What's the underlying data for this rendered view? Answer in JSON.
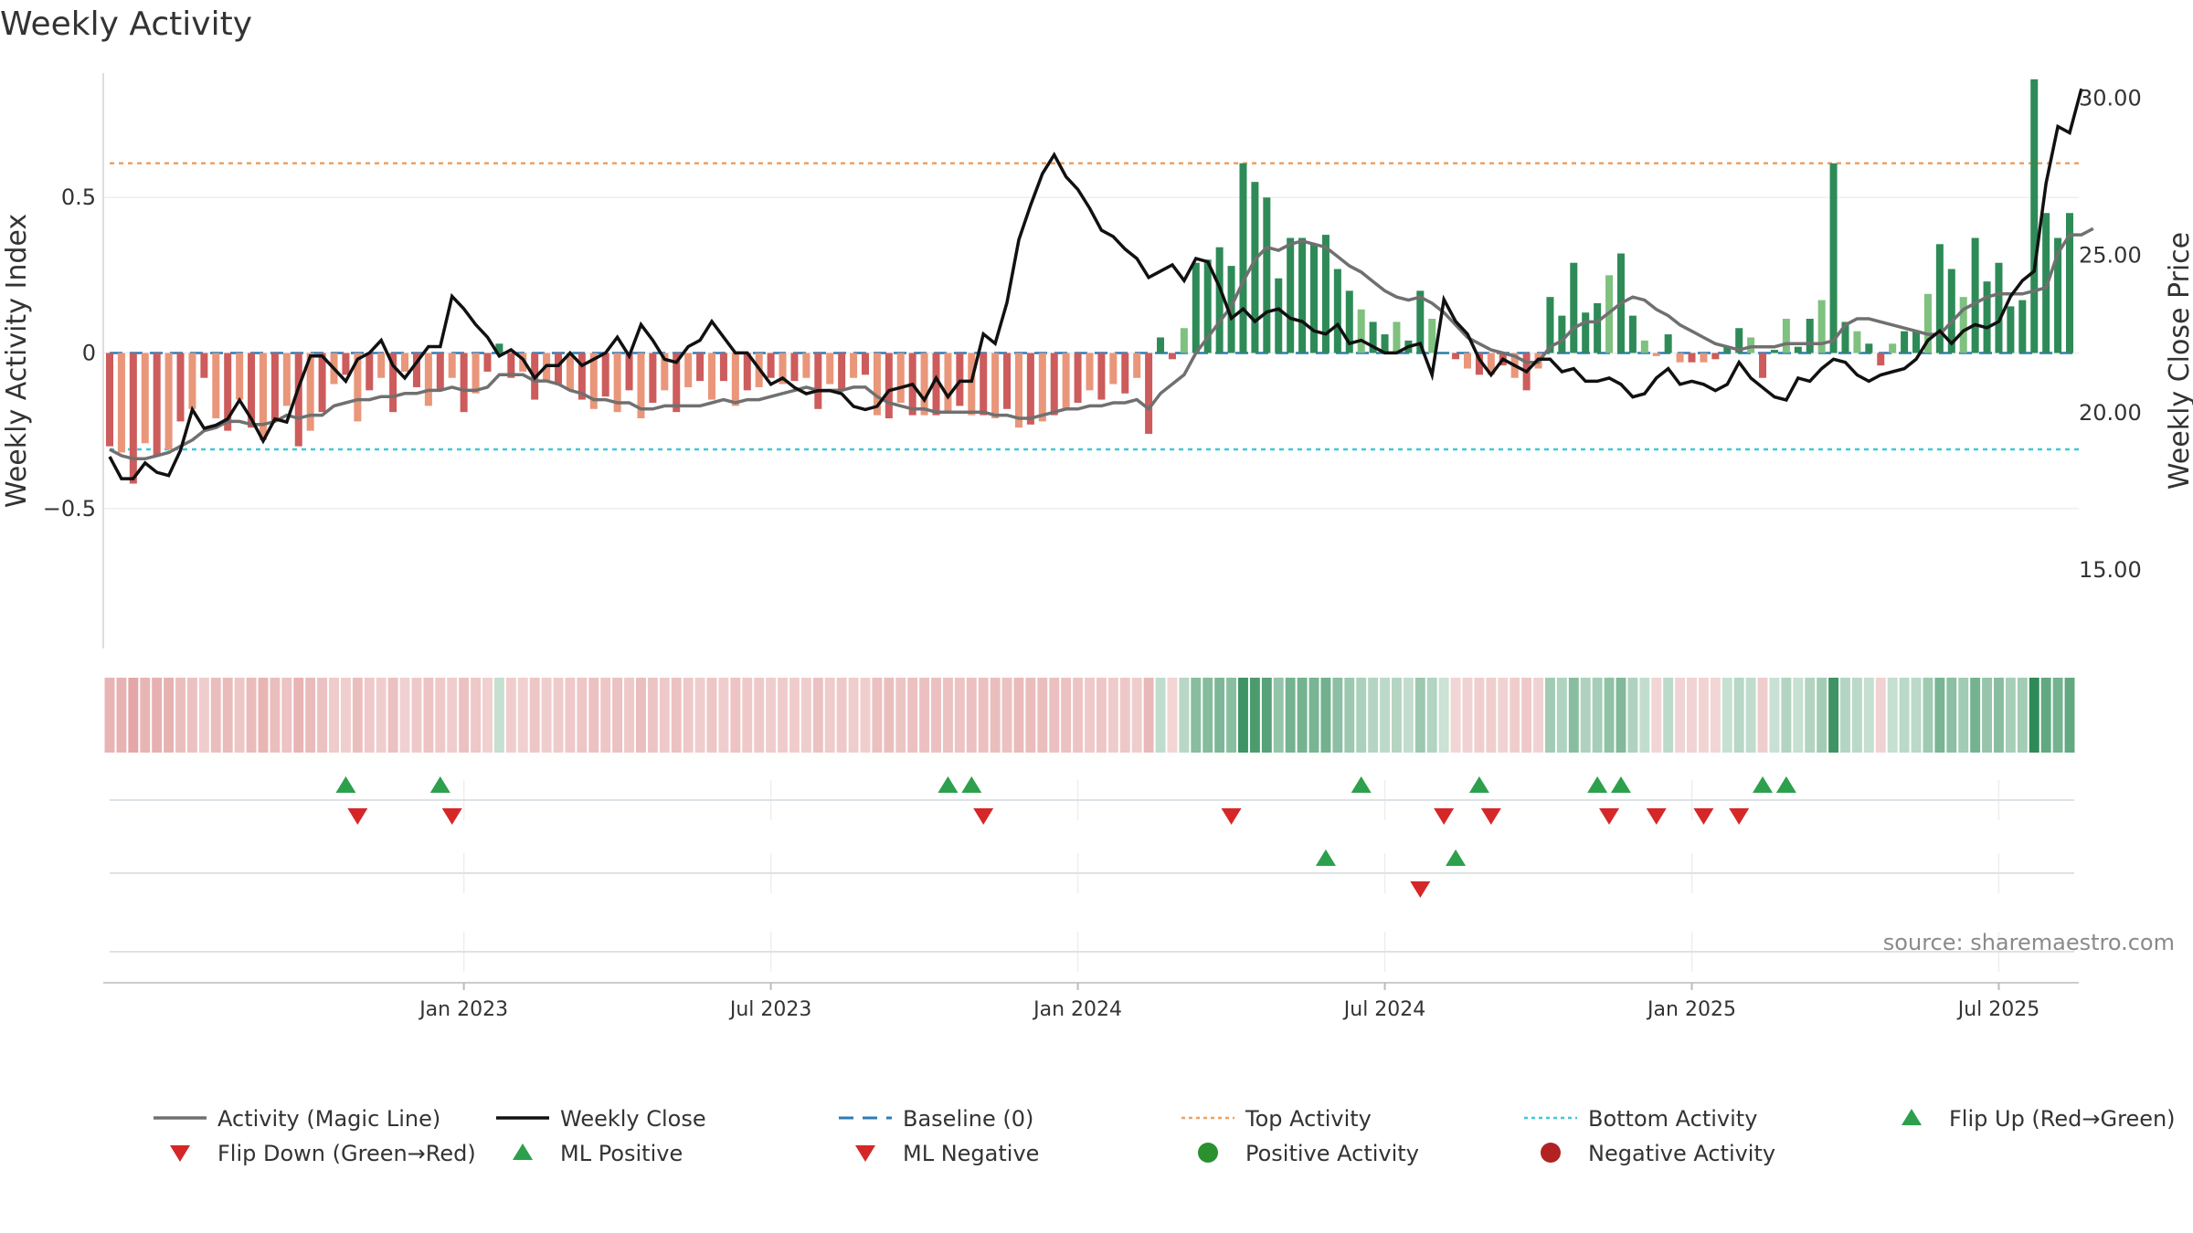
{
  "chart_data": {
    "type": "bar",
    "title": "Weekly Activity",
    "ylabel_left": "Weekly Activity Index",
    "ylabel_right": "Weekly Close Price",
    "source": "source: sharemaestro.com",
    "y_left": {
      "range": [
        -0.95,
        0.9
      ],
      "ticks": [
        0.5,
        0,
        -0.5
      ],
      "tick_labels": [
        "0.5",
        "0",
        "−0.5"
      ]
    },
    "y_right": {
      "range": [
        12.5,
        30.8
      ],
      "ticks": [
        30.0,
        25.0,
        20.0,
        15.0
      ],
      "tick_labels": [
        "30.00",
        "25.00",
        "20.00",
        "15.00"
      ]
    },
    "x_ticks": [
      {
        "week": 30,
        "label": "Jan 2023"
      },
      {
        "week": 56,
        "label": "Jul 2023"
      },
      {
        "week": 82,
        "label": "Jan 2024"
      },
      {
        "week": 108,
        "label": "Jul 2024"
      },
      {
        "week": 134,
        "label": "Jan 2025"
      },
      {
        "week": 160,
        "label": "Jul 2025"
      }
    ],
    "reference_lines": {
      "baseline": 0.0,
      "top_activity": 0.61,
      "bottom_activity": -0.31
    },
    "activity": [
      -0.3,
      -0.32,
      -0.42,
      -0.29,
      -0.33,
      -0.31,
      -0.22,
      -0.18,
      -0.08,
      -0.21,
      -0.25,
      -0.15,
      -0.24,
      -0.28,
      -0.22,
      -0.17,
      -0.3,
      -0.25,
      -0.19,
      -0.1,
      -0.07,
      -0.22,
      -0.12,
      -0.08,
      -0.19,
      -0.06,
      -0.11,
      -0.17,
      -0.12,
      -0.08,
      -0.19,
      -0.13,
      -0.06,
      0.03,
      -0.08,
      -0.06,
      -0.15,
      -0.09,
      -0.1,
      -0.12,
      -0.15,
      -0.18,
      -0.14,
      -0.19,
      -0.12,
      -0.21,
      -0.16,
      -0.12,
      -0.19,
      -0.11,
      -0.09,
      -0.15,
      -0.09,
      -0.17,
      -0.12,
      -0.11,
      -0.08,
      -0.1,
      -0.09,
      -0.08,
      -0.18,
      -0.1,
      -0.12,
      -0.08,
      -0.07,
      -0.2,
      -0.21,
      -0.16,
      -0.2,
      -0.2,
      -0.2,
      -0.19,
      -0.17,
      -0.2,
      -0.2,
      -0.21,
      -0.18,
      -0.24,
      -0.23,
      -0.22,
      -0.2,
      -0.18,
      -0.16,
      -0.12,
      -0.15,
      -0.1,
      -0.13,
      -0.08,
      -0.26,
      0.05,
      -0.02,
      0.08,
      0.29,
      0.3,
      0.34,
      0.28,
      0.61,
      0.55,
      0.5,
      0.24,
      0.37,
      0.37,
      0.35,
      0.38,
      0.27,
      0.2,
      0.14,
      0.1,
      0.06,
      0.1,
      0.04,
      0.2,
      0.11,
      0.0,
      -0.02,
      -0.05,
      -0.07,
      -0.07,
      -0.04,
      -0.08,
      -0.12,
      -0.05,
      0.18,
      0.12,
      0.29,
      0.13,
      0.16,
      0.25,
      0.32,
      0.12,
      0.04,
      -0.01,
      0.06,
      -0.03,
      -0.03,
      -0.03,
      -0.02,
      0.02,
      0.08,
      0.05,
      -0.08,
      0.01,
      0.11,
      0.02,
      0.11,
      0.17,
      0.61,
      0.1,
      0.07,
      0.03,
      -0.04,
      0.03,
      0.07,
      0.07,
      0.19,
      0.35,
      0.27,
      0.18,
      0.37,
      0.23,
      0.29,
      0.15,
      0.17,
      0.88,
      0.45,
      0.37,
      0.45
    ],
    "magic_line": [
      -0.31,
      -0.33,
      -0.34,
      -0.34,
      -0.33,
      -0.32,
      -0.3,
      -0.28,
      -0.25,
      -0.24,
      -0.22,
      -0.22,
      -0.23,
      -0.23,
      -0.22,
      -0.2,
      -0.21,
      -0.2,
      -0.2,
      -0.17,
      -0.16,
      -0.15,
      -0.15,
      -0.14,
      -0.14,
      -0.13,
      -0.13,
      -0.12,
      -0.12,
      -0.11,
      -0.12,
      -0.12,
      -0.11,
      -0.07,
      -0.07,
      -0.07,
      -0.09,
      -0.09,
      -0.1,
      -0.12,
      -0.13,
      -0.15,
      -0.15,
      -0.16,
      -0.16,
      -0.18,
      -0.18,
      -0.17,
      -0.17,
      -0.17,
      -0.17,
      -0.16,
      -0.15,
      -0.16,
      -0.15,
      -0.15,
      -0.14,
      -0.13,
      -0.12,
      -0.11,
      -0.12,
      -0.12,
      -0.12,
      -0.11,
      -0.11,
      -0.14,
      -0.16,
      -0.17,
      -0.18,
      -0.18,
      -0.19,
      -0.19,
      -0.19,
      -0.19,
      -0.19,
      -0.2,
      -0.2,
      -0.21,
      -0.21,
      -0.2,
      -0.19,
      -0.18,
      -0.18,
      -0.17,
      -0.17,
      -0.16,
      -0.16,
      -0.15,
      -0.18,
      -0.13,
      -0.1,
      -0.07,
      0.0,
      0.05,
      0.1,
      0.15,
      0.23,
      0.3,
      0.34,
      0.33,
      0.35,
      0.36,
      0.35,
      0.34,
      0.31,
      0.28,
      0.26,
      0.23,
      0.2,
      0.18,
      0.17,
      0.18,
      0.16,
      0.13,
      0.09,
      0.05,
      0.03,
      0.01,
      0.0,
      -0.01,
      -0.03,
      -0.03,
      0.02,
      0.04,
      0.08,
      0.1,
      0.1,
      0.13,
      0.16,
      0.18,
      0.17,
      0.14,
      0.12,
      0.09,
      0.07,
      0.05,
      0.03,
      0.02,
      0.01,
      0.02,
      0.02,
      0.02,
      0.03,
      0.03,
      0.03,
      0.03,
      0.04,
      0.09,
      0.11,
      0.11,
      0.1,
      0.09,
      0.08,
      0.07,
      0.06,
      0.06,
      0.1,
      0.14,
      0.16,
      0.18,
      0.19,
      0.19,
      0.19,
      0.2,
      0.21,
      0.32,
      0.38,
      0.38,
      0.4
    ],
    "weekly_close": [
      18.6,
      17.9,
      17.9,
      18.4,
      18.1,
      18.0,
      18.8,
      20.1,
      19.5,
      19.6,
      19.8,
      20.4,
      19.8,
      19.1,
      19.8,
      19.7,
      20.8,
      21.8,
      21.8,
      21.4,
      21.0,
      21.7,
      21.9,
      22.3,
      21.5,
      21.1,
      21.6,
      22.1,
      22.1,
      23.7,
      23.3,
      22.8,
      22.4,
      21.8,
      22.0,
      21.7,
      21.1,
      21.5,
      21.5,
      21.9,
      21.5,
      21.7,
      21.9,
      22.4,
      21.8,
      22.8,
      22.3,
      21.7,
      21.6,
      22.1,
      22.3,
      22.9,
      22.4,
      21.9,
      21.9,
      21.4,
      20.9,
      21.1,
      20.8,
      20.6,
      20.7,
      20.7,
      20.6,
      20.2,
      20.1,
      20.2,
      20.7,
      20.8,
      20.9,
      20.4,
      21.1,
      20.5,
      21.0,
      21.0,
      22.5,
      22.2,
      23.5,
      25.5,
      26.6,
      27.6,
      28.2,
      27.5,
      27.1,
      26.5,
      25.8,
      25.6,
      25.2,
      24.9,
      24.3,
      24.5,
      24.7,
      24.2,
      24.9,
      24.8,
      24.0,
      23.0,
      23.3,
      22.9,
      23.2,
      23.3,
      23.0,
      22.9,
      22.6,
      22.5,
      22.8,
      22.2,
      22.3,
      22.1,
      21.9,
      21.9,
      22.1,
      22.2,
      21.2,
      23.6,
      22.9,
      22.5,
      21.7,
      21.2,
      21.7,
      21.5,
      21.3,
      21.7,
      21.7,
      21.3,
      21.4,
      21.0,
      21.0,
      21.1,
      20.9,
      20.5,
      20.6,
      21.1,
      21.4,
      20.9,
      21.0,
      20.9,
      20.7,
      20.9,
      21.6,
      21.1,
      20.8,
      20.5,
      20.4,
      21.1,
      21.0,
      21.4,
      21.7,
      21.6,
      21.2,
      21.0,
      21.2,
      21.3,
      21.4,
      21.7,
      22.3,
      22.6,
      22.2,
      22.6,
      22.8,
      22.7,
      22.9,
      23.7,
      24.2,
      24.5,
      27.3,
      29.1,
      28.9,
      30.3
    ],
    "heat_strip": "same sign/intensity as activity",
    "ml_positive_weeks": [
      103,
      114
    ],
    "ml_negative_weeks": [
      111
    ],
    "flip_up_weeks": [
      20,
      28,
      71,
      73,
      106,
      116,
      126,
      128,
      140,
      142
    ],
    "flip_down_weeks": [
      21,
      29,
      74,
      95,
      113,
      117,
      127,
      131,
      135,
      138
    ]
  },
  "legend": [
    {
      "label": "Activity (Magic Line)",
      "icon": "line",
      "color": "#707070"
    },
    {
      "label": "Weekly Close",
      "icon": "line",
      "color": "#111111"
    },
    {
      "label": "Baseline (0)",
      "icon": "dashed",
      "color": "#2e7cb6"
    },
    {
      "label": "Top Activity",
      "icon": "dotted",
      "color": "#f0a060"
    },
    {
      "label": "Bottom Activity",
      "icon": "dotted",
      "color": "#3ec8d8"
    },
    {
      "label": "Flip Up (Red→Green)",
      "icon": "triangle-up",
      "color": "#2ca04c"
    },
    {
      "label": "Flip Down (Green→Red)",
      "icon": "triangle-down",
      "color": "#d62728"
    },
    {
      "label": "ML Positive",
      "icon": "triangle-up",
      "color": "#2ca04c"
    },
    {
      "label": "ML Negative",
      "icon": "triangle-down",
      "color": "#d62728"
    },
    {
      "label": "Positive Activity",
      "icon": "circle",
      "color": "#2a9030"
    },
    {
      "label": "Negative Activity",
      "icon": "circle",
      "color": "#b22222"
    }
  ],
  "colors": {
    "pos_strong": "#2e8b57",
    "pos_weak": "#7fc17f",
    "neg_strong": "#cd5c5c",
    "neg_weak": "#e9967a",
    "close_line": "#111111",
    "magic_line": "#707070",
    "baseline": "#2e7cb6",
    "top_activity": "#f0a060",
    "bottom_activity": "#3ec8d8",
    "up_marker": "#2ca04c",
    "down_marker": "#d62728",
    "grid": "#eeeeee"
  }
}
